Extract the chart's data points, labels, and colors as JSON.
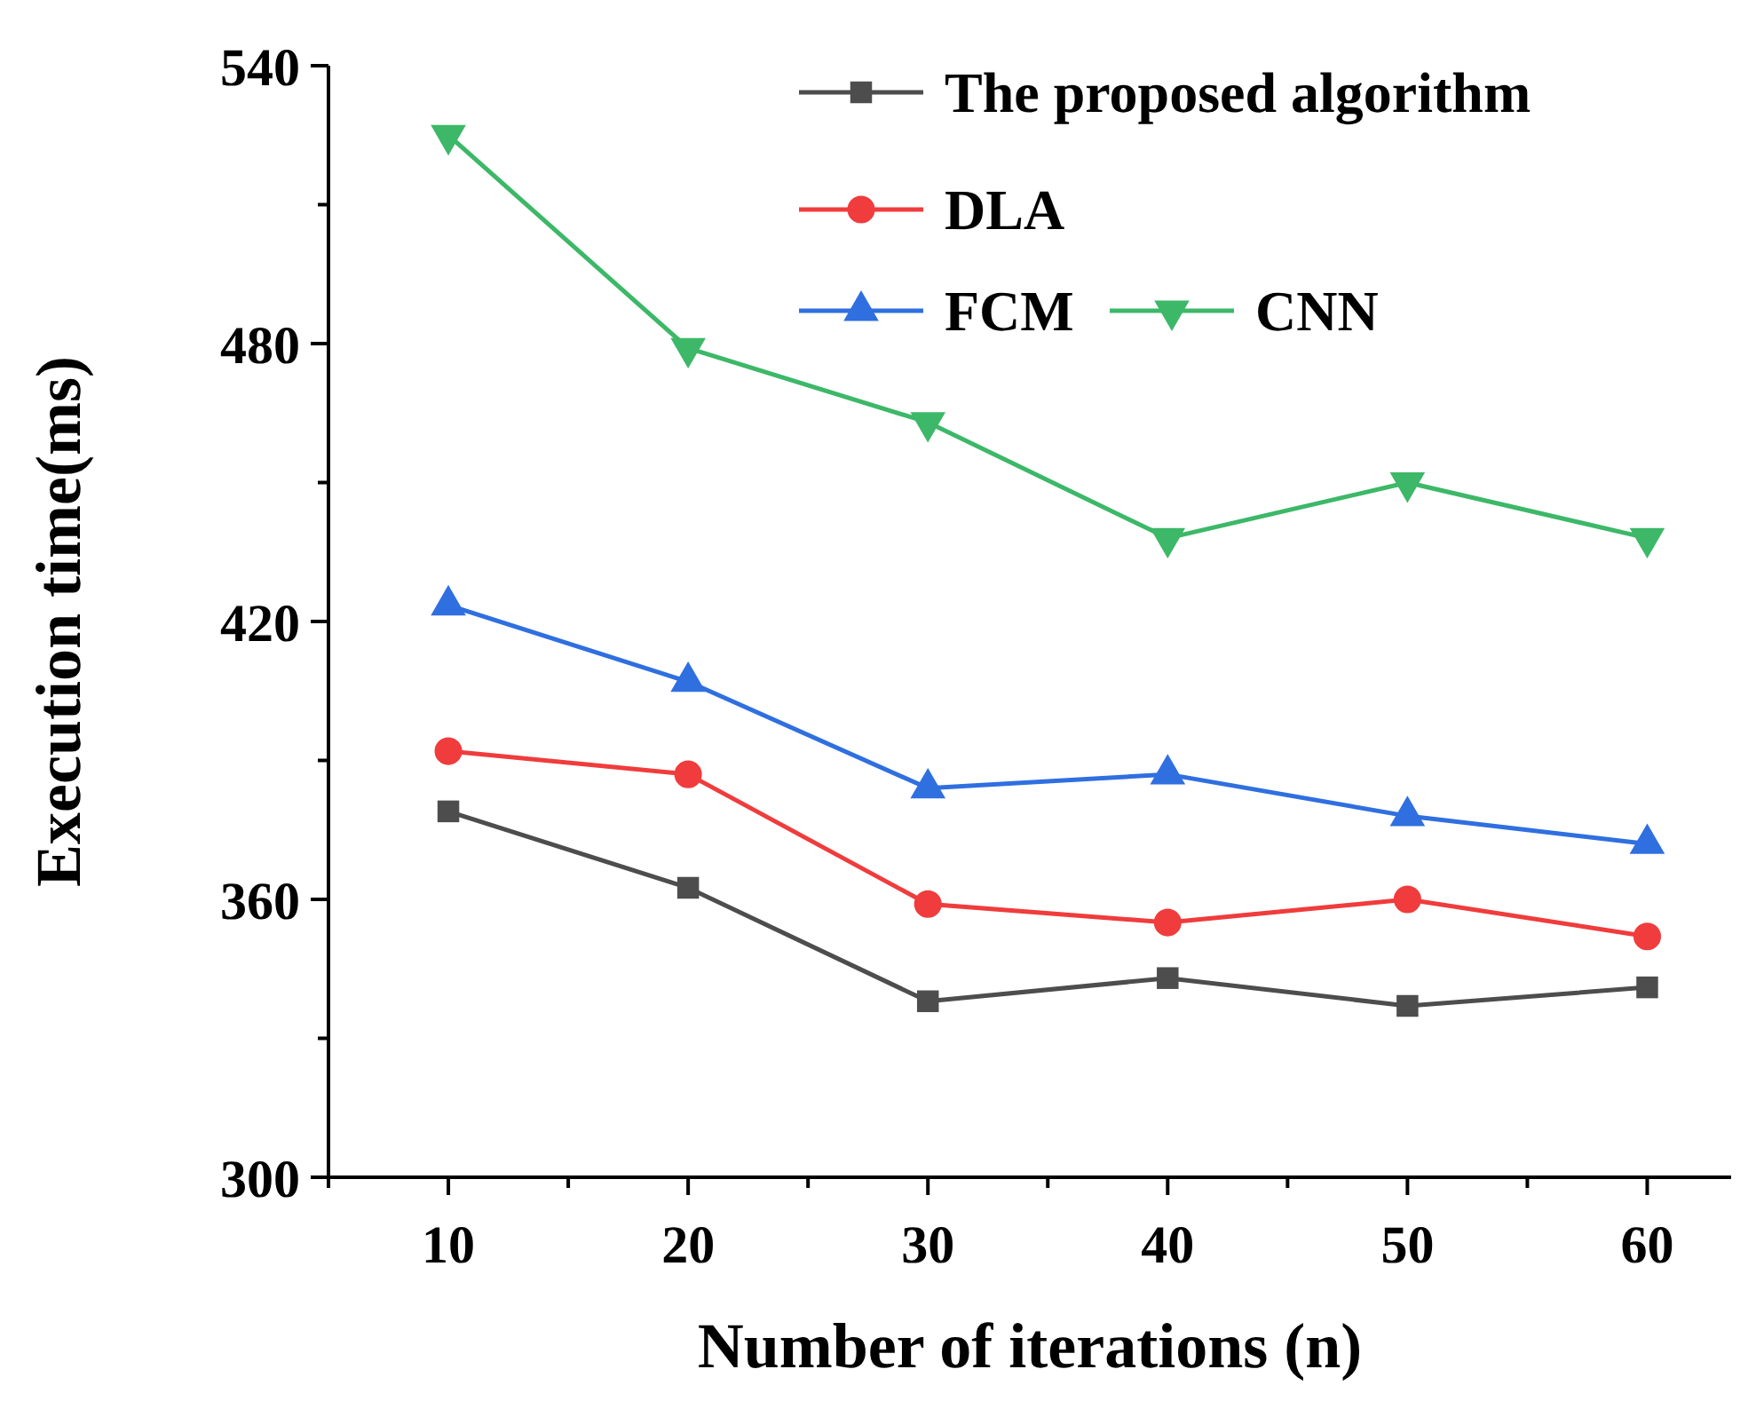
{
  "chart_data": {
    "type": "line",
    "xlabel": "Number of iterations (n)",
    "ylabel": "Execution time(ms)",
    "x": [
      10,
      20,
      30,
      40,
      50,
      60
    ],
    "xlim": [
      5,
      63.5
    ],
    "xticks": [
      10,
      20,
      30,
      40,
      50,
      60
    ],
    "ylim": [
      300,
      540
    ],
    "yticks": [
      300,
      360,
      420,
      480,
      540
    ],
    "legend": "top right",
    "grid": false,
    "line_style": "solid",
    "series": [
      {
        "name": "The proposed algorithm",
        "color": "#4d4d4d",
        "marker": "square",
        "values": [
          379,
          362.5,
          338,
          343,
          337,
          341
        ]
      },
      {
        "name": "DLA",
        "color": "#f03c3c",
        "marker": "circle",
        "values": [
          392,
          387,
          359,
          355,
          360,
          352
        ]
      },
      {
        "name": "FCM",
        "color": "#2f6fe0",
        "marker": "triangle",
        "values": [
          423.5,
          407,
          384,
          387,
          378,
          372
        ]
      },
      {
        "name": "CNN",
        "color": "#3cb868",
        "marker": "triangle-down",
        "values": [
          525,
          479,
          463,
          438,
          450,
          438
        ]
      }
    ]
  }
}
